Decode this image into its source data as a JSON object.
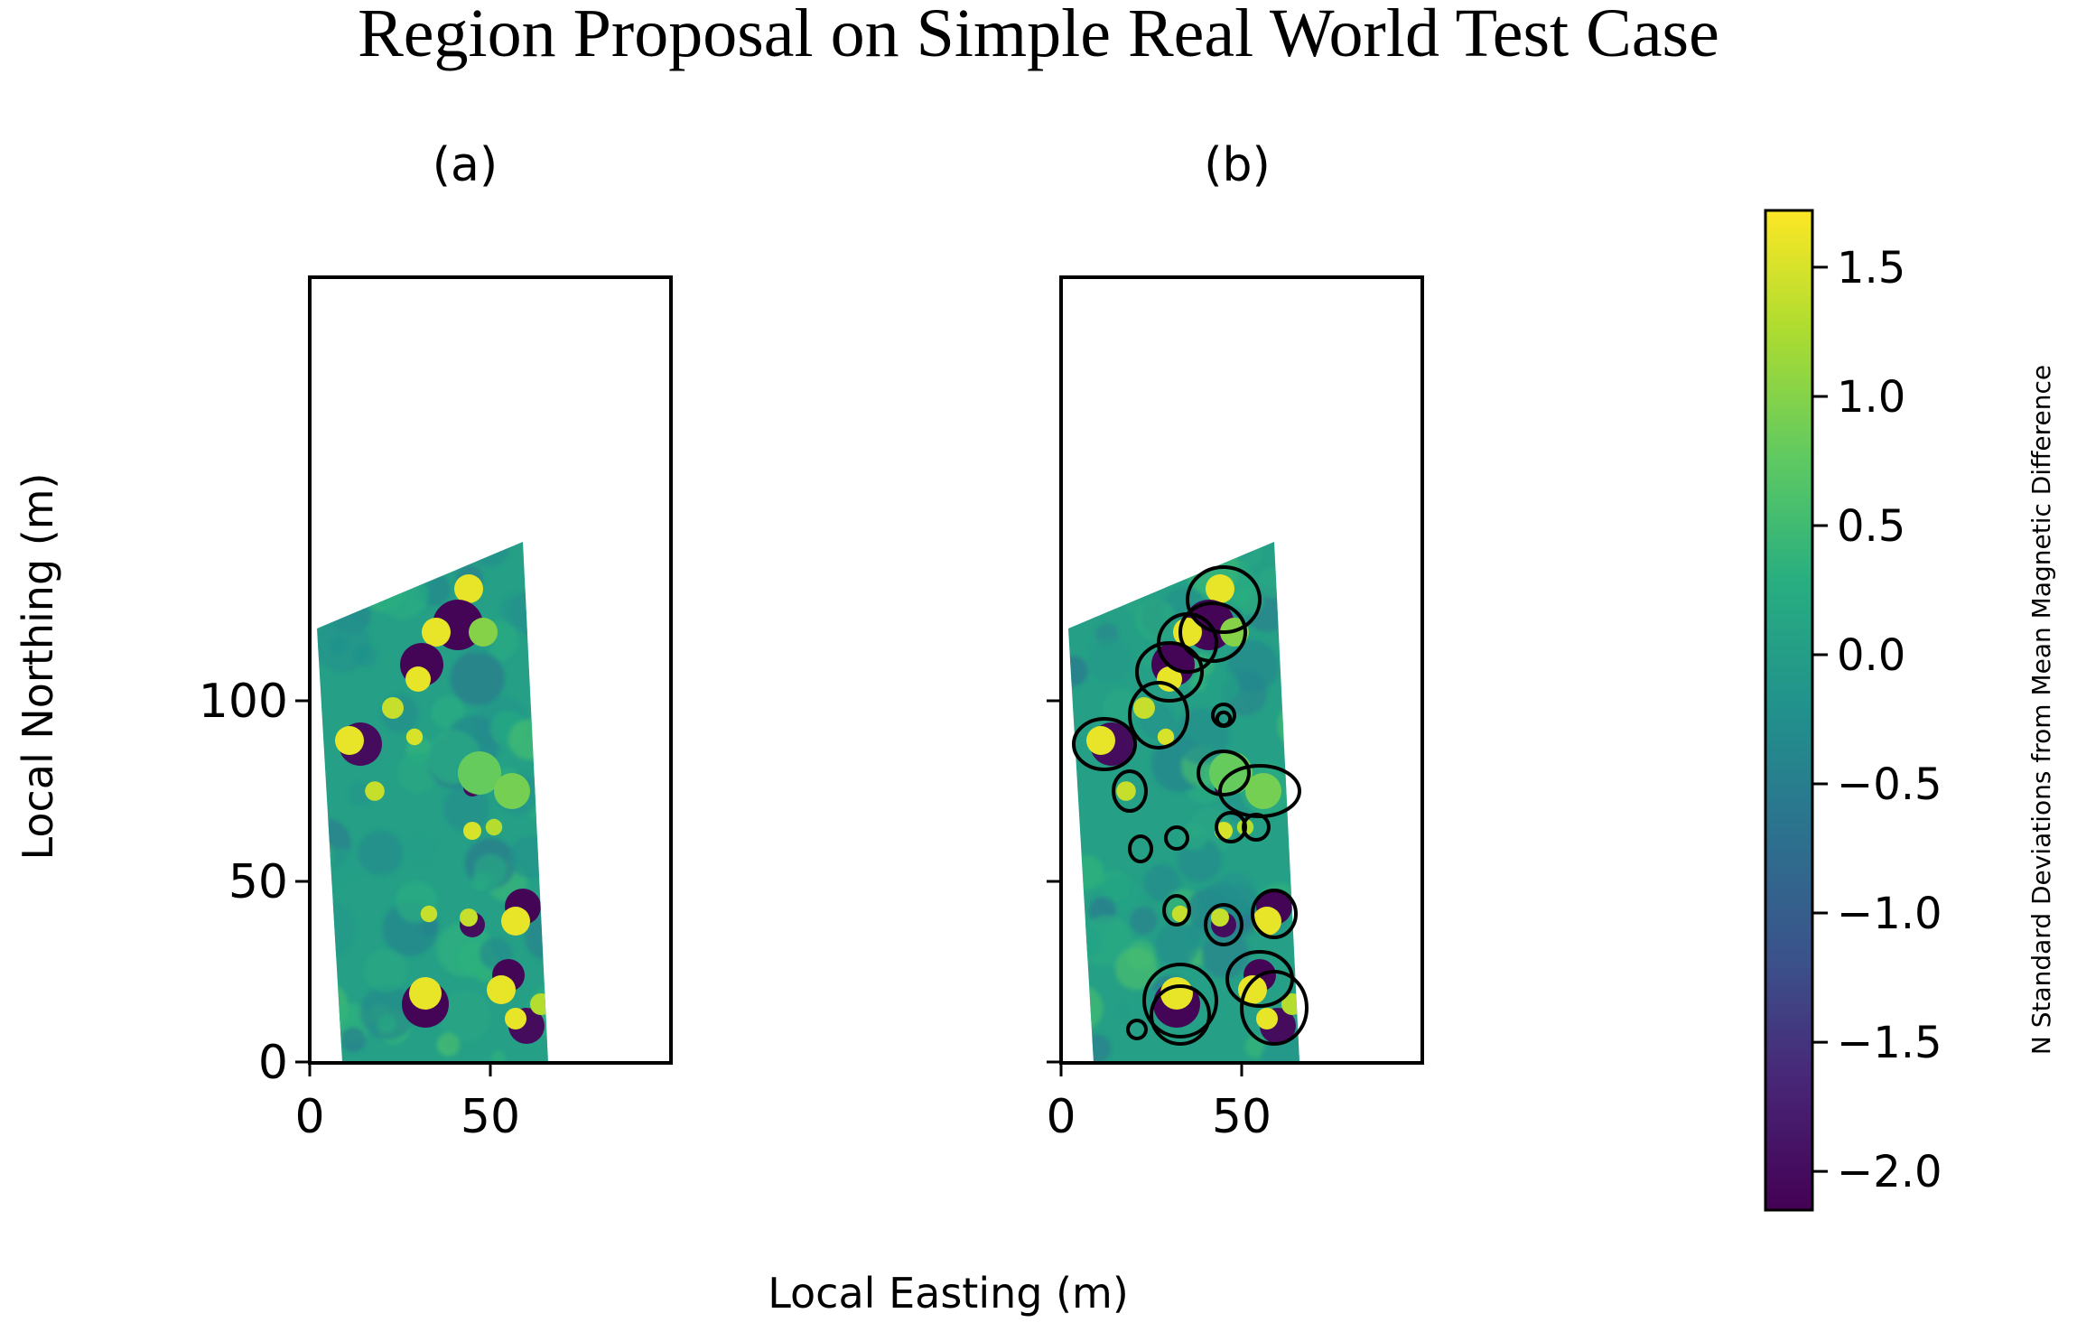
{
  "figure": {
    "title": "Region Proposal on Simple Real World Test Case",
    "shared_xlabel": "Local Easting (m)",
    "shared_ylabel": "Local Northing (m)"
  },
  "chart_data": [
    {
      "type": "heatmap",
      "panel_label": "(a)",
      "xlabel": "Local Easting (m)",
      "ylabel": "Local Northing (m)",
      "xlim": [
        0,
        68
      ],
      "ylim": [
        0,
        148
      ],
      "xticks": [
        0,
        50
      ],
      "yticks": [
        0,
        50,
        100
      ],
      "survey_polygon": [
        [
          2,
          120
        ],
        [
          59,
          144
        ],
        [
          66,
          0
        ],
        [
          9,
          0
        ]
      ],
      "anomalies": [
        {
          "x": 44,
          "y": 131,
          "r": 4,
          "v": 1.6
        },
        {
          "x": 41,
          "y": 121,
          "r": 7,
          "v": -2.1
        },
        {
          "x": 35,
          "y": 119,
          "r": 4,
          "v": 1.6
        },
        {
          "x": 48,
          "y": 119,
          "r": 4,
          "v": 1.0
        },
        {
          "x": 31,
          "y": 110,
          "r": 6,
          "v": -2.1
        },
        {
          "x": 30,
          "y": 106,
          "r": 3.5,
          "v": 1.6
        },
        {
          "x": 23,
          "y": 98,
          "r": 3,
          "v": 1.4
        },
        {
          "x": 29,
          "y": 90,
          "r": 2.3,
          "v": 1.5
        },
        {
          "x": 14,
          "y": 88,
          "r": 6,
          "v": -2.0
        },
        {
          "x": 11,
          "y": 89,
          "r": 4,
          "v": 1.6
        },
        {
          "x": 18,
          "y": 75,
          "r": 2.7,
          "v": 1.4
        },
        {
          "x": 45,
          "y": 76,
          "r": 2.5,
          "v": -2.0
        },
        {
          "x": 47,
          "y": 80,
          "r": 6,
          "v": 0.8
        },
        {
          "x": 56,
          "y": 75,
          "r": 5,
          "v": 0.9
        },
        {
          "x": 45,
          "y": 64,
          "r": 2.5,
          "v": 1.5
        },
        {
          "x": 51,
          "y": 65,
          "r": 2.3,
          "v": 1.3
        },
        {
          "x": 33,
          "y": 41,
          "r": 2.3,
          "v": 1.4
        },
        {
          "x": 59,
          "y": 43,
          "r": 5,
          "v": -2.1
        },
        {
          "x": 57,
          "y": 39,
          "r": 4,
          "v": 1.6
        },
        {
          "x": 45,
          "y": 38,
          "r": 3.5,
          "v": -2.0
        },
        {
          "x": 44,
          "y": 40,
          "r": 2.5,
          "v": 1.4
        },
        {
          "x": 32,
          "y": 16,
          "r": 6.5,
          "v": -2.1
        },
        {
          "x": 32,
          "y": 19,
          "r": 4.5,
          "v": 1.6
        },
        {
          "x": 55,
          "y": 24,
          "r": 4.5,
          "v": -2.1
        },
        {
          "x": 53,
          "y": 20,
          "r": 4,
          "v": 1.6
        },
        {
          "x": 60,
          "y": 10,
          "r": 5,
          "v": -2.0
        },
        {
          "x": 57,
          "y": 12,
          "r": 3,
          "v": 1.6
        },
        {
          "x": 64,
          "y": 16,
          "r": 3,
          "v": 1.3
        }
      ]
    },
    {
      "type": "heatmap",
      "panel_label": "(b)",
      "xlabel": "Local Easting (m)",
      "xlim": [
        0,
        68
      ],
      "ylim": [
        0,
        148
      ],
      "xticks": [
        0,
        50
      ],
      "yticks": [
        0,
        50,
        100
      ],
      "survey_polygon": [
        [
          2,
          120
        ],
        [
          59,
          144
        ],
        [
          66,
          0
        ],
        [
          9,
          0
        ]
      ],
      "region_proposals": [
        {
          "x": 45,
          "y": 128,
          "rx": 10,
          "ry": 9
        },
        {
          "x": 42,
          "y": 119,
          "rx": 9,
          "ry": 8
        },
        {
          "x": 35,
          "y": 116,
          "rx": 8,
          "ry": 8
        },
        {
          "x": 30,
          "y": 108,
          "rx": 9,
          "ry": 8
        },
        {
          "x": 27,
          "y": 96,
          "rx": 8,
          "ry": 9
        },
        {
          "x": 12,
          "y": 88,
          "rx": 8.5,
          "ry": 7
        },
        {
          "x": 19,
          "y": 75,
          "rx": 4.5,
          "ry": 5.5
        },
        {
          "x": 45,
          "y": 96,
          "rx": 3,
          "ry": 3
        },
        {
          "x": 45,
          "y": 95,
          "rx": 1.8,
          "ry": 1.8
        },
        {
          "x": 45,
          "y": 80,
          "rx": 7,
          "ry": 6
        },
        {
          "x": 55,
          "y": 75,
          "rx": 11,
          "ry": 7
        },
        {
          "x": 32,
          "y": 62,
          "rx": 3,
          "ry": 3
        },
        {
          "x": 22,
          "y": 59,
          "rx": 3,
          "ry": 3.5
        },
        {
          "x": 47,
          "y": 65,
          "rx": 4,
          "ry": 4
        },
        {
          "x": 54,
          "y": 65,
          "rx": 3.5,
          "ry": 3.5
        },
        {
          "x": 32,
          "y": 42,
          "rx": 3.5,
          "ry": 4
        },
        {
          "x": 45,
          "y": 38,
          "rx": 5,
          "ry": 5.5
        },
        {
          "x": 59,
          "y": 41,
          "rx": 6,
          "ry": 6.5
        },
        {
          "x": 33,
          "y": 17,
          "rx": 10,
          "ry": 10
        },
        {
          "x": 33,
          "y": 13,
          "rx": 8,
          "ry": 8
        },
        {
          "x": 55,
          "y": 23,
          "rx": 9,
          "ry": 7.5
        },
        {
          "x": 59,
          "y": 15,
          "rx": 9,
          "ry": 10
        },
        {
          "x": 21,
          "y": 9,
          "rx": 2.5,
          "ry": 2.5
        }
      ]
    },
    {
      "type": "colorbar",
      "label": "N Standard Deviations from Mean Magnetic Difference",
      "colormap": "viridis",
      "range": [
        -2.15,
        1.72
      ],
      "ticks": [
        1.5,
        1.0,
        0.5,
        0.0,
        -0.5,
        -1.0,
        -1.5,
        -2.0
      ],
      "tick_labels": [
        "1.5",
        "1.0",
        "0.5",
        "0.0",
        "−0.5",
        "−1.0",
        "−1.5",
        "−2.0"
      ]
    }
  ]
}
